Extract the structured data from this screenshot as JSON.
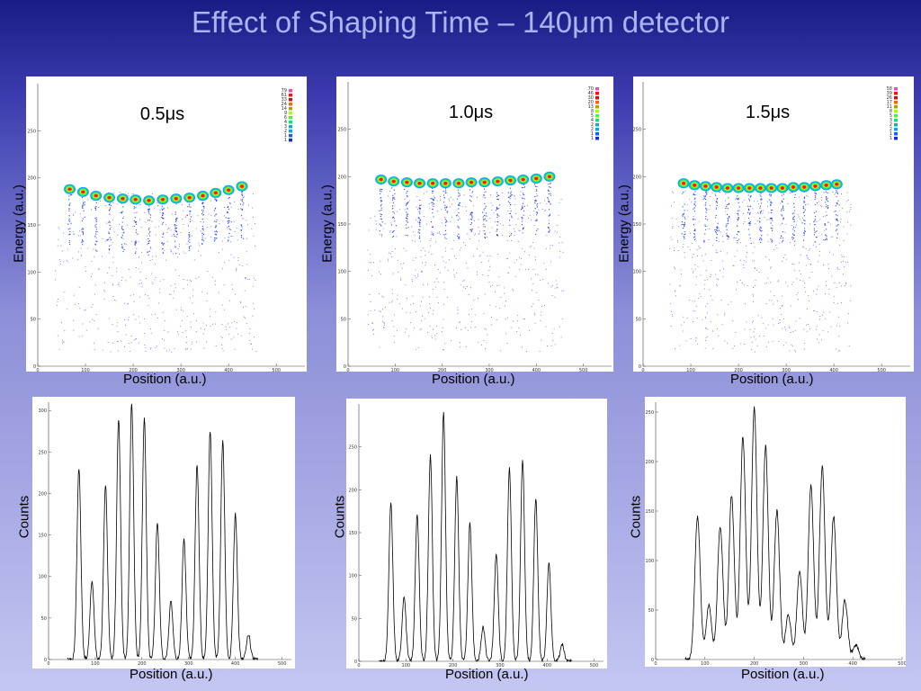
{
  "slide": {
    "title": "Effect of Shaping Time – 140μm detector"
  },
  "labels": {
    "energy": "Energy (a.u.)",
    "position": "Position (a.u.)",
    "counts": "Counts"
  },
  "colors": {
    "background_top": "#1b1b85",
    "background_bottom": "#c4c6f2",
    "title": "#aab4ee",
    "scatter_low": "#2040ff",
    "scatter_high": "#ff1010",
    "histogram_line": "#000000"
  },
  "chart_data": [
    {
      "type": "scatter",
      "panel": "2d-0.5us",
      "annotation": "0.5μs",
      "xlabel": "Position (a.u.)",
      "ylabel": "Energy (a.u.)",
      "xlim": [
        0,
        560
      ],
      "ylim": [
        0,
        300
      ],
      "x_ticks": [
        0,
        100,
        200,
        300,
        400,
        500
      ],
      "y_ticks": [
        0,
        50,
        100,
        150,
        200,
        250
      ],
      "legend_values": [
        "79",
        "61",
        "33",
        "24",
        "14",
        "9",
        "6",
        "4",
        "3",
        "2",
        "1",
        "1"
      ],
      "clusters": [
        {
          "x": 67,
          "y": 188
        },
        {
          "x": 95,
          "y": 185
        },
        {
          "x": 122,
          "y": 181
        },
        {
          "x": 150,
          "y": 179
        },
        {
          "x": 178,
          "y": 178
        },
        {
          "x": 205,
          "y": 177
        },
        {
          "x": 233,
          "y": 176
        },
        {
          "x": 262,
          "y": 177
        },
        {
          "x": 290,
          "y": 178
        },
        {
          "x": 318,
          "y": 179
        },
        {
          "x": 346,
          "y": 181
        },
        {
          "x": 373,
          "y": 184
        },
        {
          "x": 400,
          "y": 187
        },
        {
          "x": 428,
          "y": 191
        }
      ]
    },
    {
      "type": "scatter",
      "panel": "2d-1.0us",
      "annotation": "1.0μs",
      "xlabel": "Position (a.u.)",
      "ylabel": "Energy (a.u.)",
      "xlim": [
        0,
        560
      ],
      "ylim": [
        0,
        300
      ],
      "x_ticks": [
        0,
        100,
        200,
        300,
        400,
        500
      ],
      "y_ticks": [
        0,
        50,
        100,
        150,
        200,
        250
      ],
      "legend_values": [
        "70",
        "46",
        "30",
        "20",
        "13",
        "8",
        "5",
        "4",
        "2",
        "2",
        "1",
        "1"
      ],
      "clusters": [
        {
          "x": 70,
          "y": 197
        },
        {
          "x": 97,
          "y": 195
        },
        {
          "x": 125,
          "y": 194
        },
        {
          "x": 152,
          "y": 193
        },
        {
          "x": 180,
          "y": 193
        },
        {
          "x": 207,
          "y": 193
        },
        {
          "x": 235,
          "y": 193
        },
        {
          "x": 262,
          "y": 194
        },
        {
          "x": 290,
          "y": 194
        },
        {
          "x": 318,
          "y": 195
        },
        {
          "x": 345,
          "y": 196
        },
        {
          "x": 372,
          "y": 197
        },
        {
          "x": 400,
          "y": 198
        },
        {
          "x": 428,
          "y": 200
        }
      ]
    },
    {
      "type": "scatter",
      "panel": "2d-1.5us",
      "annotation": "1.5μs",
      "xlabel": "Position (a.u.)",
      "ylabel": "Energy (a.u.)",
      "xlim": [
        0,
        560
      ],
      "ylim": [
        0,
        300
      ],
      "x_ticks": [
        0,
        100,
        200,
        300,
        400,
        500
      ],
      "y_ticks": [
        0,
        50,
        100,
        150,
        200,
        250
      ],
      "legend_values": [
        "58",
        "39",
        "26",
        "17",
        "11",
        "8",
        "5",
        "3",
        "2",
        "2",
        "1",
        "1"
      ],
      "clusters": [
        {
          "x": 85,
          "y": 193
        },
        {
          "x": 108,
          "y": 191
        },
        {
          "x": 131,
          "y": 190
        },
        {
          "x": 154,
          "y": 189
        },
        {
          "x": 177,
          "y": 188
        },
        {
          "x": 200,
          "y": 188
        },
        {
          "x": 223,
          "y": 188
        },
        {
          "x": 246,
          "y": 188
        },
        {
          "x": 269,
          "y": 188
        },
        {
          "x": 292,
          "y": 188
        },
        {
          "x": 315,
          "y": 189
        },
        {
          "x": 338,
          "y": 189
        },
        {
          "x": 361,
          "y": 190
        },
        {
          "x": 384,
          "y": 191
        },
        {
          "x": 406,
          "y": 192
        }
      ]
    },
    {
      "type": "line",
      "panel": "hist-0.5us",
      "xlabel": "Position (a.u.)",
      "ylabel": "Counts",
      "xlim": [
        0,
        520
      ],
      "ylim": [
        0,
        310
      ],
      "x_ticks": [
        0,
        100,
        200,
        300,
        400,
        500
      ],
      "y_ticks": [
        0,
        50,
        100,
        150,
        200,
        250,
        300
      ],
      "peaks": [
        {
          "x": 65,
          "y": 230
        },
        {
          "x": 93,
          "y": 95
        },
        {
          "x": 122,
          "y": 210
        },
        {
          "x": 150,
          "y": 290
        },
        {
          "x": 178,
          "y": 310
        },
        {
          "x": 205,
          "y": 290
        },
        {
          "x": 233,
          "y": 165
        },
        {
          "x": 262,
          "y": 70
        },
        {
          "x": 290,
          "y": 145
        },
        {
          "x": 318,
          "y": 235
        },
        {
          "x": 346,
          "y": 275
        },
        {
          "x": 373,
          "y": 265
        },
        {
          "x": 400,
          "y": 175
        },
        {
          "x": 428,
          "y": 30
        }
      ]
    },
    {
      "type": "line",
      "panel": "hist-1.0us",
      "xlabel": "Position (a.u.)",
      "ylabel": "Counts",
      "xlim": [
        0,
        520
      ],
      "ylim": [
        0,
        300
      ],
      "x_ticks": [
        0,
        100,
        200,
        300,
        400,
        500
      ],
      "y_ticks": [
        0,
        50,
        100,
        150,
        200,
        250
      ],
      "peaks": [
        {
          "x": 68,
          "y": 185
        },
        {
          "x": 96,
          "y": 75
        },
        {
          "x": 124,
          "y": 170
        },
        {
          "x": 152,
          "y": 240
        },
        {
          "x": 180,
          "y": 290
        },
        {
          "x": 208,
          "y": 215
        },
        {
          "x": 236,
          "y": 160
        },
        {
          "x": 264,
          "y": 40
        },
        {
          "x": 292,
          "y": 125
        },
        {
          "x": 320,
          "y": 225
        },
        {
          "x": 348,
          "y": 235
        },
        {
          "x": 376,
          "y": 190
        },
        {
          "x": 404,
          "y": 115
        },
        {
          "x": 432,
          "y": 20
        }
      ]
    },
    {
      "type": "line",
      "panel": "hist-1.5us",
      "xlabel": "Position (a.u.)",
      "ylabel": "Counts",
      "xlim": [
        0,
        500
      ],
      "ylim": [
        0,
        260
      ],
      "x_ticks": [
        0,
        100,
        200,
        300,
        400,
        500
      ],
      "y_ticks": [
        0,
        50,
        100,
        150,
        200,
        250
      ],
      "peaks": [
        {
          "x": 85,
          "y": 145
        },
        {
          "x": 108,
          "y": 55
        },
        {
          "x": 131,
          "y": 135
        },
        {
          "x": 154,
          "y": 165
        },
        {
          "x": 177,
          "y": 225
        },
        {
          "x": 200,
          "y": 255
        },
        {
          "x": 223,
          "y": 215
        },
        {
          "x": 246,
          "y": 150
        },
        {
          "x": 269,
          "y": 45
        },
        {
          "x": 292,
          "y": 90
        },
        {
          "x": 315,
          "y": 175
        },
        {
          "x": 338,
          "y": 195
        },
        {
          "x": 361,
          "y": 145
        },
        {
          "x": 384,
          "y": 60
        },
        {
          "x": 406,
          "y": 15
        }
      ]
    }
  ]
}
